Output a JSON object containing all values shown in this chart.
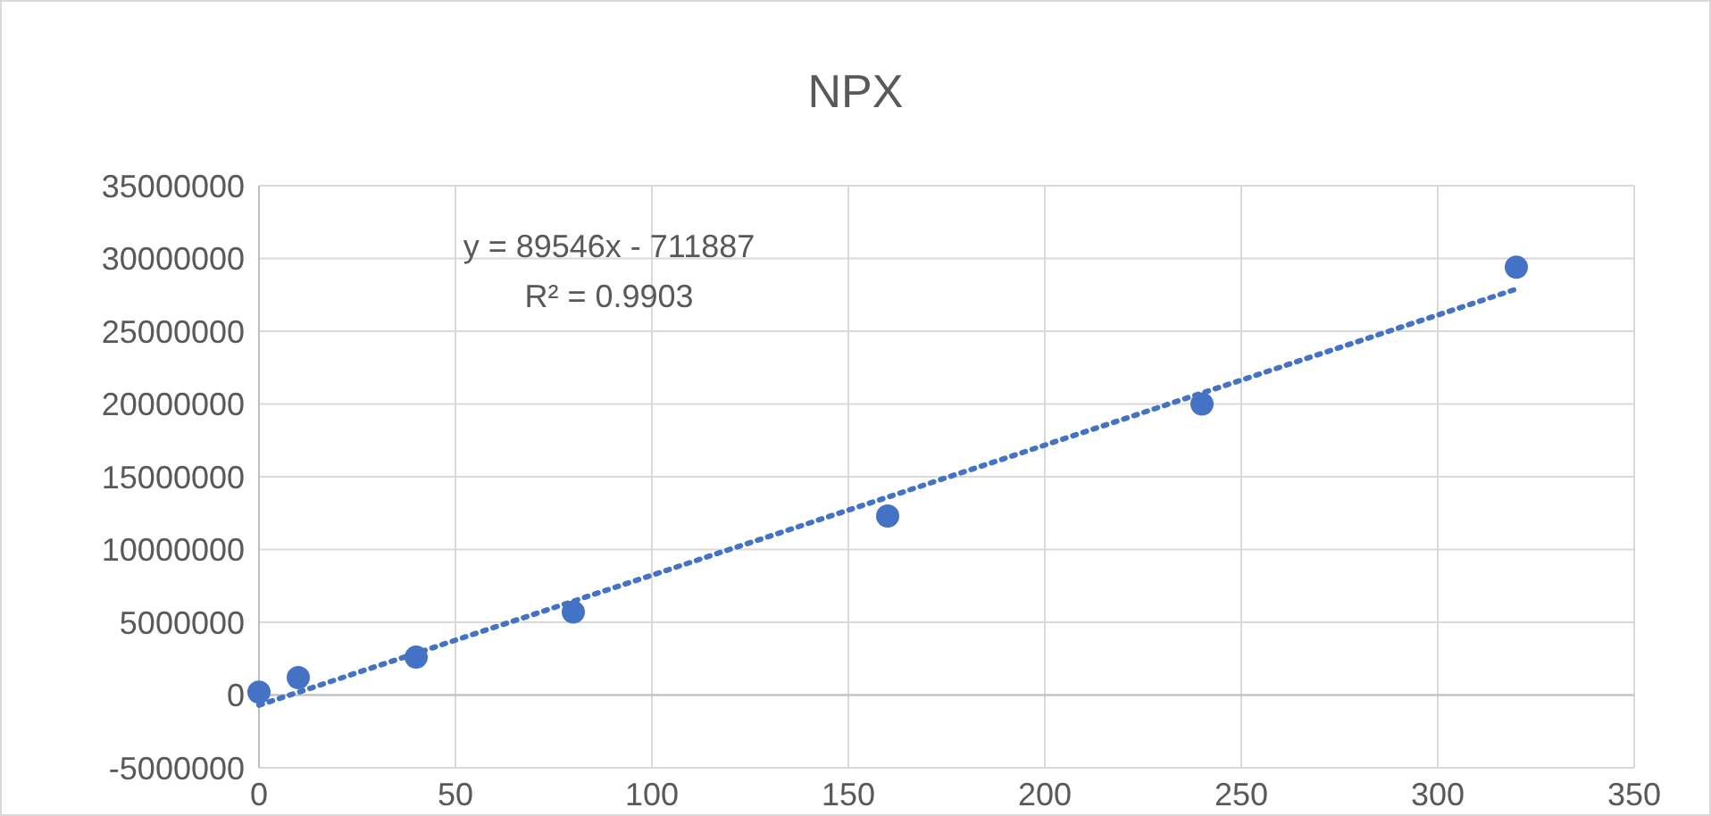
{
  "chart_data": {
    "type": "scatter",
    "title": "NPX",
    "xlim": [
      0,
      350
    ],
    "xticks": [
      0,
      50,
      100,
      150,
      200,
      250,
      300,
      350
    ],
    "ylim": [
      -5000000,
      35000000
    ],
    "yticks": [
      -5000000,
      0,
      5000000,
      10000000,
      15000000,
      20000000,
      25000000,
      30000000,
      35000000
    ],
    "grid": true,
    "annotations": [
      "y = 89546x - 711887",
      "R² = 0.9903"
    ],
    "series": [
      {
        "color": "#4472c4",
        "marker": "circle",
        "x": [
          0,
          10,
          40,
          80,
          160,
          240,
          320
        ],
        "values": [
          200000,
          1200000,
          2600000,
          5700000,
          12300000,
          20000000,
          29400000
        ]
      },
      {
        "type": "line",
        "color": "#4472c4",
        "marker": "none",
        "line_style": "dotted",
        "x": [
          0,
          320
        ],
        "values": [
          -700000,
          27900000
        ]
      }
    ]
  }
}
